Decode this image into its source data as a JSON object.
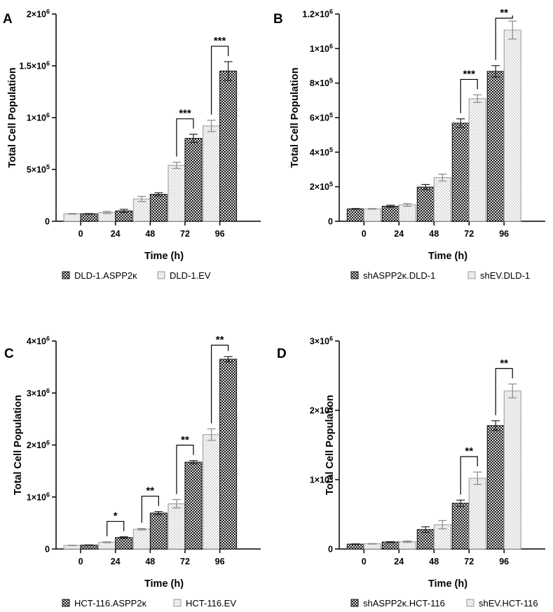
{
  "chart_data": [
    {
      "type": "bar",
      "panel_label": "A",
      "categories": [
        "0",
        "24",
        "48",
        "72",
        "96"
      ],
      "xlabel": "Time (h)",
      "ylabel": "Total Cell Population",
      "ylim": [
        0,
        2000000
      ],
      "yticks": [
        {
          "value": 0,
          "mantissa": "0",
          "exp": ""
        },
        {
          "value": 500000,
          "mantissa": "5×10",
          "exp": "5"
        },
        {
          "value": 1000000,
          "mantissa": "1×10",
          "exp": "6"
        },
        {
          "value": 1500000,
          "mantissa": "1.5×10",
          "exp": "6"
        },
        {
          "value": 2000000,
          "mantissa": "2×10",
          "exp": "6"
        }
      ],
      "series_order": "light-first",
      "series": [
        {
          "name": "DLD-1.ASPP2κ",
          "style": "dark",
          "values": [
            72000,
            100000,
            260000,
            800000,
            1450000
          ],
          "errors": [
            3000,
            15000,
            15000,
            40000,
            90000
          ]
        },
        {
          "name": "DLD-1.EV",
          "style": "light",
          "values": [
            72000,
            85000,
            215000,
            540000,
            920000
          ],
          "errors": [
            3000,
            10000,
            25000,
            30000,
            55000
          ]
        }
      ],
      "significance": [
        {
          "category": "72",
          "label": "***"
        },
        {
          "category": "96",
          "label": "***"
        }
      ]
    },
    {
      "type": "bar",
      "panel_label": "B",
      "categories": [
        "0",
        "24",
        "48",
        "72",
        "96"
      ],
      "xlabel": "Time (h)",
      "ylabel": "Total Cell Population",
      "ylim": [
        0,
        1200000
      ],
      "yticks": [
        {
          "value": 0,
          "mantissa": "0",
          "exp": ""
        },
        {
          "value": 200000,
          "mantissa": "2×10",
          "exp": "5"
        },
        {
          "value": 400000,
          "mantissa": "4×10",
          "exp": "5"
        },
        {
          "value": 600000,
          "mantissa": "6×10",
          "exp": "5"
        },
        {
          "value": 800000,
          "mantissa": "8×10",
          "exp": "5"
        },
        {
          "value": 1000000,
          "mantissa": "1×10",
          "exp": "6"
        },
        {
          "value": 1200000,
          "mantissa": "1.2×10",
          "exp": "6"
        }
      ],
      "series_order": "dark-first",
      "series": [
        {
          "name": "shASPP2κ.DLD-1",
          "style": "dark",
          "values": [
            72000,
            87000,
            198000,
            568000,
            868000
          ],
          "errors": [
            2000,
            6000,
            15000,
            25000,
            33000
          ]
        },
        {
          "name": "shEV.DLD-1",
          "style": "light",
          "values": [
            72000,
            95000,
            253000,
            710000,
            1107000
          ],
          "errors": [
            2000,
            8000,
            20000,
            22000,
            52000
          ]
        }
      ],
      "significance": [
        {
          "category": "72",
          "label": "***"
        },
        {
          "category": "96",
          "label": "**"
        }
      ]
    },
    {
      "type": "bar",
      "panel_label": "C",
      "categories": [
        "0",
        "24",
        "48",
        "72",
        "96"
      ],
      "xlabel": "Time (h)",
      "ylabel": "Total Cell Population",
      "ylim": [
        0,
        4000000
      ],
      "yticks": [
        {
          "value": 0,
          "mantissa": "0",
          "exp": ""
        },
        {
          "value": 1000000,
          "mantissa": "1×10",
          "exp": "6"
        },
        {
          "value": 2000000,
          "mantissa": "2×10",
          "exp": "6"
        },
        {
          "value": 3000000,
          "mantissa": "3×10",
          "exp": "6"
        },
        {
          "value": 4000000,
          "mantissa": "4×10",
          "exp": "6"
        }
      ],
      "series_order": "light-first",
      "series": [
        {
          "name": "HCT-116.ASPP2κ",
          "style": "dark",
          "values": [
            75000,
            220000,
            690000,
            1670000,
            3650000
          ],
          "errors": [
            4000,
            15000,
            30000,
            30000,
            50000
          ]
        },
        {
          "name": "HCT-116.EV",
          "style": "light",
          "values": [
            70000,
            130000,
            380000,
            870000,
            2200000
          ],
          "errors": [
            4000,
            8000,
            15000,
            80000,
            110000
          ]
        }
      ],
      "significance": [
        {
          "category": "24",
          "label": "*"
        },
        {
          "category": "48",
          "label": "**"
        },
        {
          "category": "72",
          "label": "**"
        },
        {
          "category": "96",
          "label": "**"
        }
      ]
    },
    {
      "type": "bar",
      "panel_label": "D",
      "categories": [
        "0",
        "24",
        "48",
        "72",
        "96"
      ],
      "xlabel": "Time (h)",
      "ylabel": "Total Cell Population",
      "ylim": [
        0,
        3000000
      ],
      "yticks": [
        {
          "value": 0,
          "mantissa": "0",
          "exp": ""
        },
        {
          "value": 1000000,
          "mantissa": "1×10",
          "exp": "6"
        },
        {
          "value": 2000000,
          "mantissa": "2×10",
          "exp": "6"
        },
        {
          "value": 3000000,
          "mantissa": "3×10",
          "exp": "6"
        }
      ],
      "series_order": "dark-first",
      "series": [
        {
          "name": "shASPP2κ.HCT-116",
          "style": "dark",
          "values": [
            70000,
            100000,
            280000,
            660000,
            1780000
          ],
          "errors": [
            4000,
            6000,
            40000,
            45000,
            70000
          ]
        },
        {
          "name": "shEV.HCT-116",
          "style": "light",
          "values": [
            75000,
            105000,
            350000,
            1020000,
            2280000
          ],
          "errors": [
            4000,
            10000,
            60000,
            90000,
            100000
          ]
        }
      ],
      "significance": [
        {
          "category": "72",
          "label": "**"
        },
        {
          "category": "96",
          "label": "**"
        }
      ]
    }
  ]
}
